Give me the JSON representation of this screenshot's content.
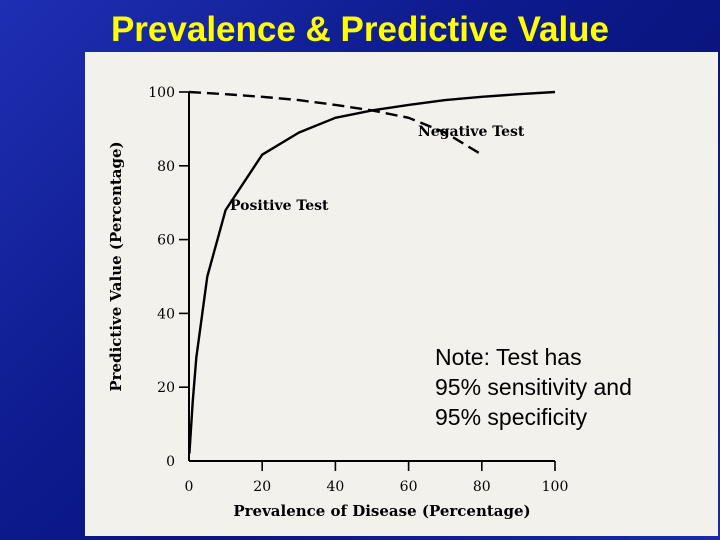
{
  "slide": {
    "title": "Prevalence & Predictive Value",
    "note_lines": [
      "Note:  Test has",
      "95% sensitivity and",
      "95% specificity"
    ]
  },
  "colors": {
    "title": "#ffff00",
    "background": "#0d1a8c",
    "paper": "#f3f1ec",
    "ink": "#000000"
  },
  "chart_data": {
    "type": "line",
    "title": "",
    "xlabel": "Prevalence of Disease (Percentage)",
    "ylabel": "Predictive Value (Percentage)",
    "xlim": [
      0,
      100
    ],
    "ylim": [
      0,
      100
    ],
    "x_ticks": [
      0,
      20,
      40,
      60,
      80,
      100
    ],
    "y_ticks": [
      0,
      20,
      40,
      60,
      80,
      100
    ],
    "series": [
      {
        "name": "Positive Test",
        "style": "solid",
        "x": [
          0.1,
          1,
          2,
          5,
          10,
          20,
          30,
          40,
          50,
          60,
          70,
          80,
          90,
          100
        ],
        "y": [
          2,
          16,
          28,
          50,
          68,
          83,
          89,
          93,
          95,
          96.5,
          97.8,
          98.7,
          99.4,
          100
        ]
      },
      {
        "name": "Negative Test",
        "style": "dashed",
        "x": [
          0,
          10,
          20,
          30,
          40,
          50,
          60,
          70,
          80
        ],
        "y": [
          100,
          99.4,
          98.7,
          97.8,
          96.5,
          95,
          93,
          89,
          83
        ]
      }
    ]
  }
}
